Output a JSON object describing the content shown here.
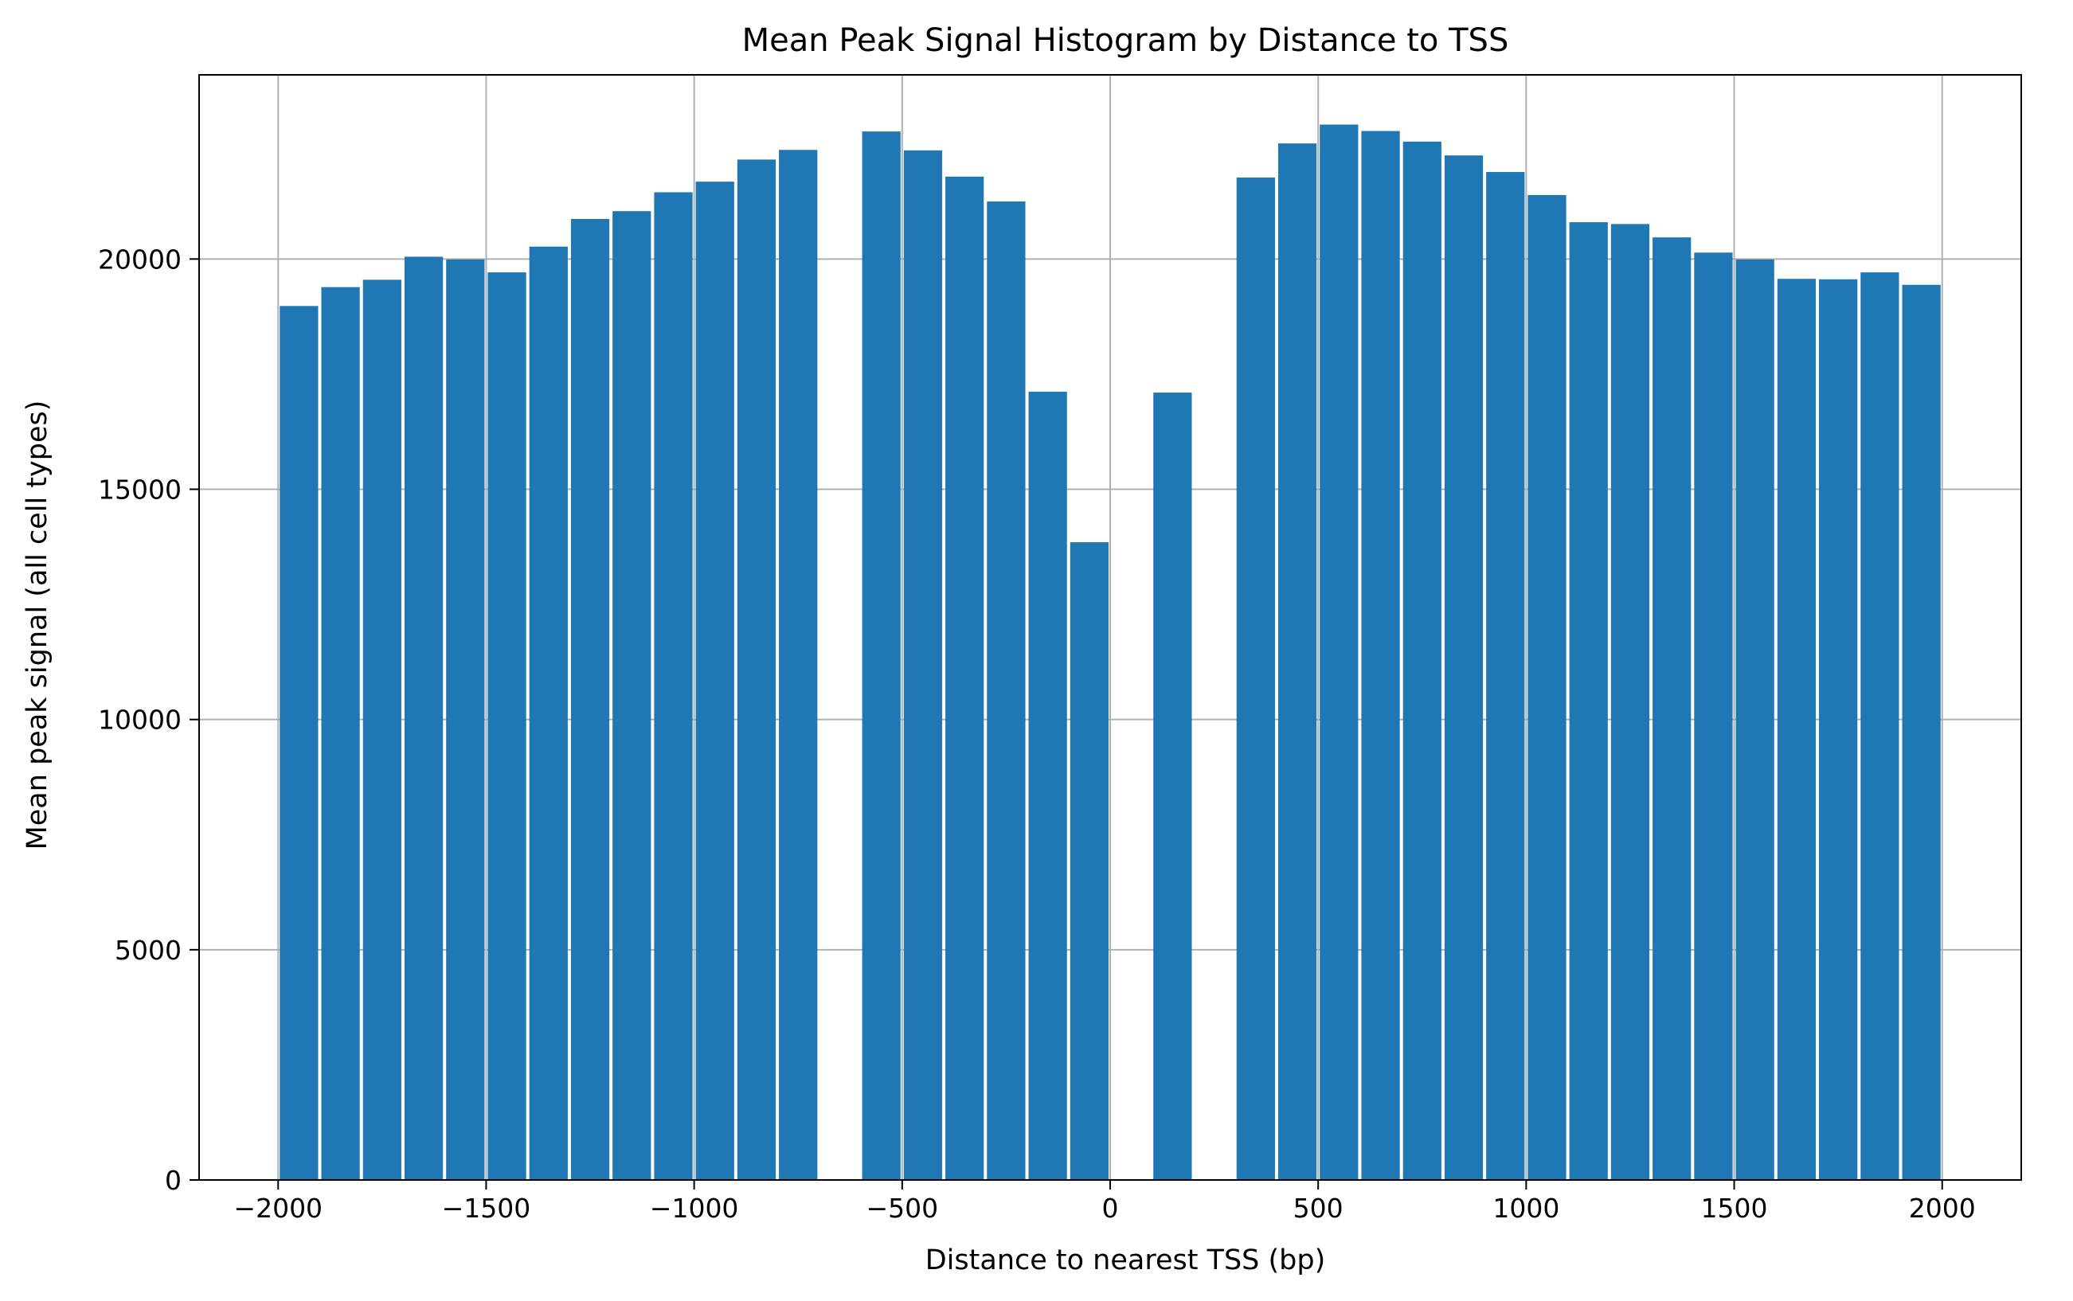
{
  "chart_data": {
    "type": "bar",
    "title": "Mean Peak Signal Histogram by Distance to TSS",
    "xlabel": "Distance to nearest TSS (bp)",
    "ylabel": "Mean peak signal (all cell types)",
    "xlim": [
      -2190,
      2190
    ],
    "ylim": [
      0,
      24000
    ],
    "x_ticks": [
      -2000,
      -1500,
      -1000,
      -500,
      0,
      500,
      1000,
      1500,
      2000
    ],
    "x_tick_labels": [
      "−2000",
      "−1500",
      "−1000",
      "−500",
      "0",
      "500",
      "1000",
      "1500",
      "2000"
    ],
    "y_ticks": [
      0,
      5000,
      10000,
      15000,
      20000
    ],
    "y_tick_labels": [
      "0",
      "5000",
      "10000",
      "15000",
      "20000"
    ],
    "grid": true,
    "bin_width": 100,
    "bar_color": "#1f77b4",
    "bars": [
      {
        "x0": -2000,
        "value": 18980
      },
      {
        "x0": -1900,
        "value": 19390
      },
      {
        "x0": -1800,
        "value": 19550
      },
      {
        "x0": -1700,
        "value": 20050
      },
      {
        "x0": -1600,
        "value": 19990
      },
      {
        "x0": -1500,
        "value": 19710
      },
      {
        "x0": -1400,
        "value": 20270
      },
      {
        "x0": -1300,
        "value": 20870
      },
      {
        "x0": -1200,
        "value": 21040
      },
      {
        "x0": -1100,
        "value": 21450
      },
      {
        "x0": -1000,
        "value": 21680
      },
      {
        "x0": -900,
        "value": 22160
      },
      {
        "x0": -800,
        "value": 22370
      },
      {
        "x0": -600,
        "value": 22770
      },
      {
        "x0": -500,
        "value": 22360
      },
      {
        "x0": -400,
        "value": 21790
      },
      {
        "x0": -300,
        "value": 21250
      },
      {
        "x0": -200,
        "value": 17120
      },
      {
        "x0": -100,
        "value": 13850
      },
      {
        "x0": 100,
        "value": 17100
      },
      {
        "x0": 300,
        "value": 21770
      },
      {
        "x0": 400,
        "value": 22510
      },
      {
        "x0": 500,
        "value": 22920
      },
      {
        "x0": 600,
        "value": 22780
      },
      {
        "x0": 700,
        "value": 22550
      },
      {
        "x0": 800,
        "value": 22250
      },
      {
        "x0": 900,
        "value": 21890
      },
      {
        "x0": 1000,
        "value": 21390
      },
      {
        "x0": 1100,
        "value": 20800
      },
      {
        "x0": 1200,
        "value": 20760
      },
      {
        "x0": 1300,
        "value": 20470
      },
      {
        "x0": 1400,
        "value": 20140
      },
      {
        "x0": 1500,
        "value": 19990
      },
      {
        "x0": 1600,
        "value": 19570
      },
      {
        "x0": 1700,
        "value": 19560
      },
      {
        "x0": 1800,
        "value": 19710
      },
      {
        "x0": 1900,
        "value": 19440
      }
    ]
  }
}
